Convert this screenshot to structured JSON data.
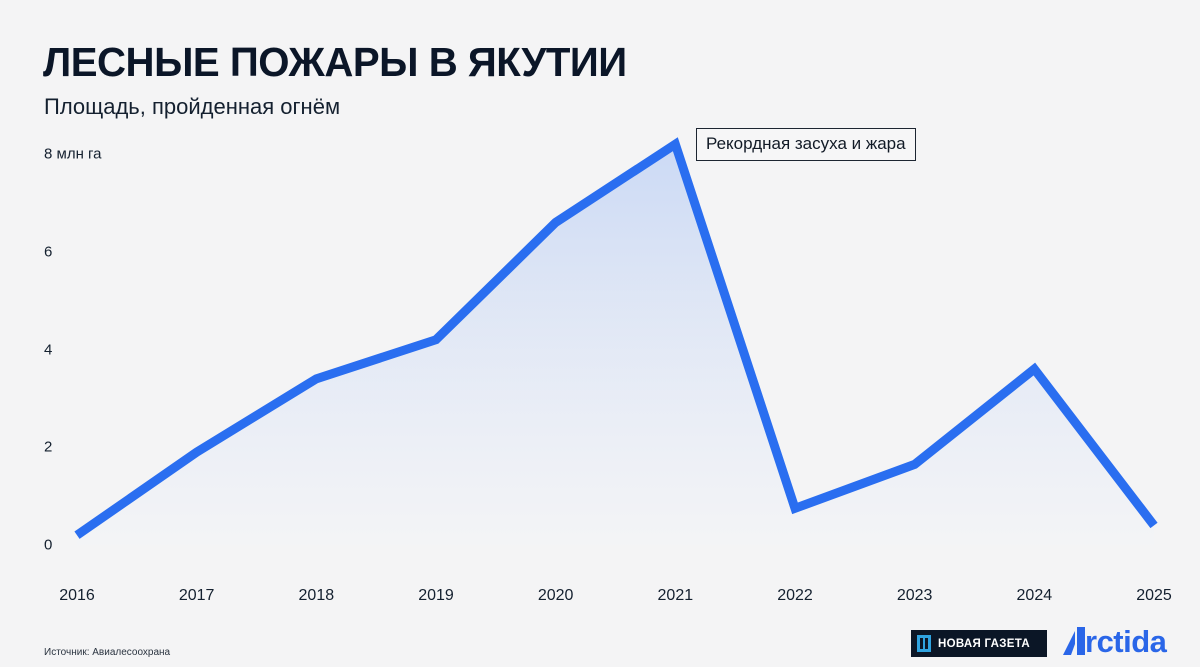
{
  "header": {
    "title": "ЛЕСНЫЕ ПОЖАРЫ В ЯКУТИИ",
    "subtitle": "Площадь, пройденная огнём"
  },
  "y_axis": {
    "ticks": [
      "0",
      "2",
      "4",
      "6",
      "8 млн га"
    ]
  },
  "x_axis": {
    "ticks": [
      "2016",
      "2017",
      "2018",
      "2019",
      "2020",
      "2021",
      "2022",
      "2023",
      "2024",
      "2025"
    ]
  },
  "annotation": {
    "text": "Рекордная засуха и жара",
    "year": "2021"
  },
  "footer": {
    "source": "Источник: Авиалесоохрана",
    "logo_novaya_gazeta": "НОВАЯ ГАЗЕТА",
    "logo_arctida": "rctida"
  },
  "colors": {
    "line": "#2a6ef0",
    "fill_top": "#cfdcf4",
    "background": "#f4f4f5",
    "text": "#0b1628"
  },
  "chart_data": {
    "type": "area",
    "title": "ЛЕСНЫЕ ПОЖАРЫ В ЯКУТИИ",
    "subtitle": "Площадь, пройденная огнём",
    "xlabel": "",
    "ylabel": "млн га",
    "categories": [
      "2016",
      "2017",
      "2018",
      "2019",
      "2020",
      "2021",
      "2022",
      "2023",
      "2024",
      "2025"
    ],
    "series": [
      {
        "name": "Площадь, пройденная огнём (млн га)",
        "values": [
          0.2,
          1.9,
          3.4,
          4.2,
          6.6,
          8.2,
          0.75,
          1.65,
          3.6,
          0.4
        ]
      }
    ],
    "ylim": [
      0,
      8
    ],
    "yticks": [
      0,
      2,
      4,
      6,
      8
    ],
    "grid": false,
    "legend": "none",
    "annotations": [
      {
        "x": "2021",
        "text": "Рекордная засуха и жара"
      }
    ],
    "source": "Источник: Авиалесоохрана"
  }
}
